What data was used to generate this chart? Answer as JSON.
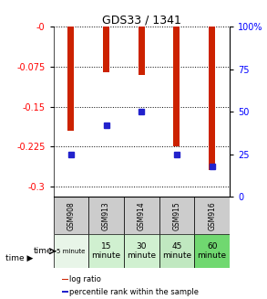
{
  "title": "GDS33 / 1341",
  "samples": [
    "GSM908",
    "GSM913",
    "GSM914",
    "GSM915",
    "GSM916"
  ],
  "time_labels_line1": [
    "5 minute",
    "15",
    "30",
    "45",
    "60"
  ],
  "time_labels_line2": [
    "",
    "minute",
    "minute",
    "minute",
    "minute"
  ],
  "time_bg_colors": [
    "#e8f5e8",
    "#d0f0d0",
    "#d0f0d0",
    "#c0e8c0",
    "#70d870"
  ],
  "log_ratios": [
    -0.195,
    -0.085,
    -0.09,
    -0.225,
    -0.27
  ],
  "percentile_ranks_pct": [
    25,
    42,
    50,
    25,
    18
  ],
  "ylim_left": [
    -0.32,
    0.0
  ],
  "ylim_right": [
    0,
    100
  ],
  "yticks_left": [
    0.0,
    -0.075,
    -0.15,
    -0.225,
    -0.3
  ],
  "yticks_right": [
    0,
    25,
    50,
    75,
    100
  ],
  "bar_color": "#cc2200",
  "dot_color": "#2222cc",
  "sample_bg": "#cccccc",
  "bar_width": 0.18,
  "figsize": [
    2.93,
    3.27
  ],
  "dpi": 100
}
